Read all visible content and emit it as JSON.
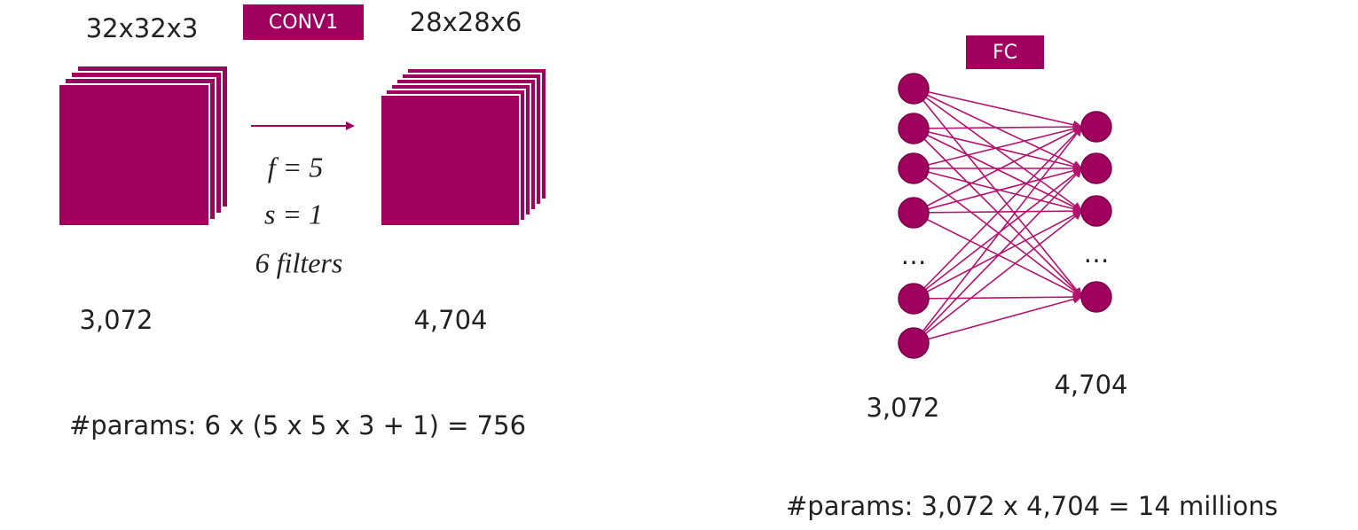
{
  "conv": {
    "input_shape": "32x32x3",
    "layer_label": "CONV1",
    "output_shape": "28x28x6",
    "hyperparams": [
      "f = 5",
      "s = 1",
      "6 filters"
    ],
    "input_size": "3,072",
    "output_size": "4,704",
    "params": "#params: 6 x (5 x 5 x 3 + 1) = 756"
  },
  "fc": {
    "layer_label": "FC",
    "input_ellipsis": "…",
    "output_ellipsis": "…",
    "input_size": "3,072",
    "output_size": "4,704",
    "params": "#params: 3,072 x 4,704 = 14 millions"
  }
}
